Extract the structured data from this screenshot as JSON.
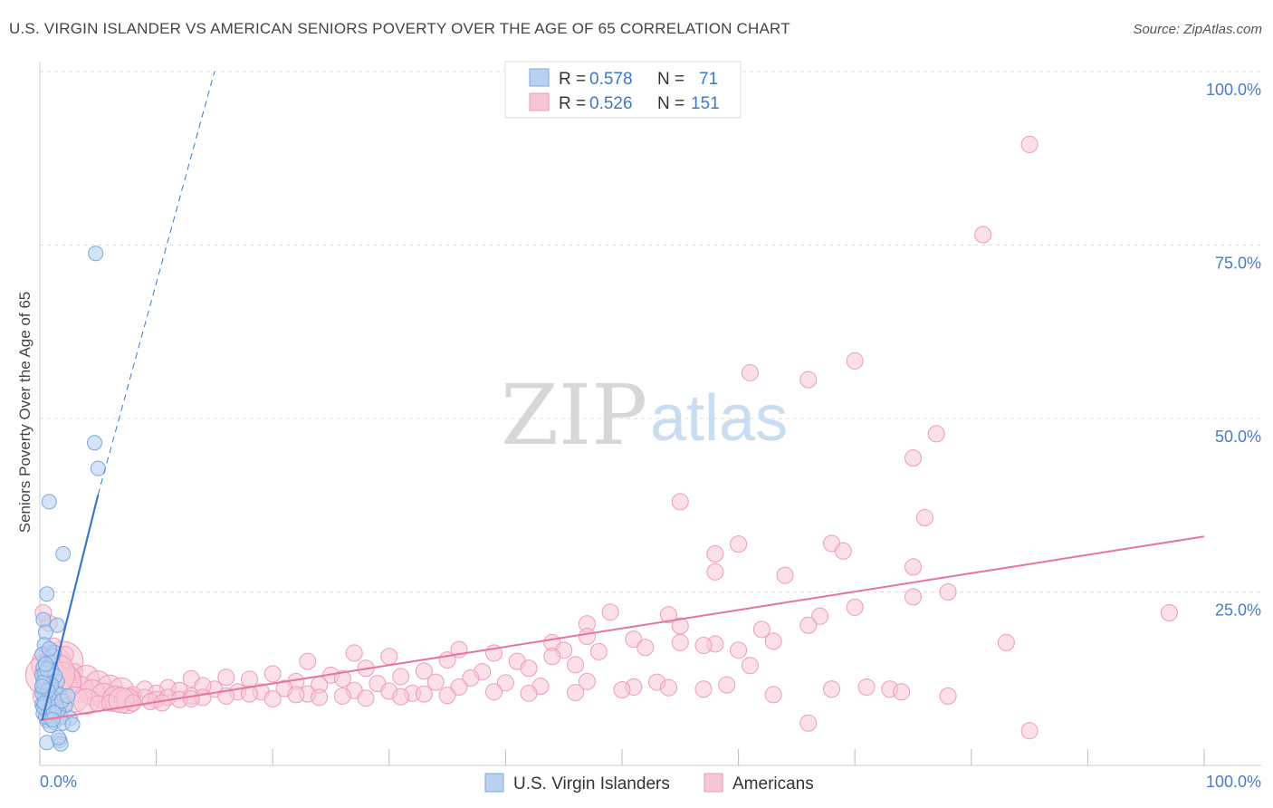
{
  "title": "U.S. VIRGIN ISLANDER VS AMERICAN SENIORS POVERTY OVER THE AGE OF 65 CORRELATION CHART",
  "source": "Source: ZipAtlas.com",
  "watermark": {
    "zip": "ZIP",
    "atlas": "atlas"
  },
  "colors": {
    "blue": "#3b78c9",
    "blue_fill": "#b9d1f0",
    "pink": "#e8739f",
    "pink_fill": "#f7c6d6",
    "grid": "#dddddd",
    "axis_text": "#4a7cc7"
  },
  "chart_data": {
    "type": "scatter",
    "xlabel": "",
    "ylabel": "Seniors Poverty Over the Age of 65",
    "xlim": [
      0,
      100
    ],
    "ylim": [
      0,
      100
    ],
    "x_tick_labels": [
      "0.0%",
      "100.0%"
    ],
    "y_tick_labels": [
      {
        "value": 25,
        "label": "25.0%"
      },
      {
        "value": 50,
        "label": "50.0%"
      },
      {
        "value": 75,
        "label": "75.0%"
      },
      {
        "value": 100,
        "label": "100.0%"
      }
    ],
    "legend": [
      {
        "name": "U.S. Virgin Islanders",
        "R_label": "R =",
        "R": "0.578",
        "N_label": "N =",
        "N": "71",
        "color": "#3b78c9"
      },
      {
        "name": "Americans",
        "R_label": "R =",
        "R": "0.526",
        "N_label": "N =",
        "N": "151",
        "color": "#e8739f"
      }
    ],
    "series": [
      {
        "name": "U.S. Virgin Islanders",
        "trend_solid": [
          [
            0.2,
            6.5
          ],
          [
            5.0,
            39.0
          ]
        ],
        "trend_dashed": [
          [
            5.0,
            39.0
          ],
          [
            15.0,
            100.0
          ]
        ],
        "points": [
          [
            4.8,
            73.8
          ],
          [
            4.7,
            46.5
          ],
          [
            5.0,
            42.8
          ],
          [
            0.8,
            38.0
          ],
          [
            2.0,
            30.5
          ],
          [
            0.6,
            24.7
          ],
          [
            0.3,
            21.0
          ],
          [
            1.5,
            20.2
          ],
          [
            0.5,
            19.2
          ],
          [
            0.4,
            17.4
          ],
          [
            1.2,
            16.3
          ],
          [
            0.6,
            15.3
          ],
          [
            0.9,
            14.9
          ],
          [
            0.3,
            14.2
          ],
          [
            1.0,
            13.7
          ],
          [
            0.2,
            13.0
          ],
          [
            0.7,
            12.6
          ],
          [
            1.5,
            12.1
          ],
          [
            0.4,
            11.8
          ],
          [
            0.9,
            11.3
          ],
          [
            0.3,
            10.9
          ],
          [
            0.6,
            10.6
          ],
          [
            1.3,
            10.5
          ],
          [
            0.8,
            10.1
          ],
          [
            1.1,
            9.8
          ],
          [
            0.5,
            9.4
          ],
          [
            1.4,
            9.1
          ],
          [
            0.2,
            8.8
          ],
          [
            2.2,
            8.6
          ],
          [
            0.7,
            8.2
          ],
          [
            1.6,
            7.8
          ],
          [
            0.3,
            7.5
          ],
          [
            1.0,
            7.2
          ],
          [
            1.8,
            6.9
          ],
          [
            2.6,
            6.8
          ],
          [
            0.6,
            6.5
          ],
          [
            1.2,
            6.2
          ],
          [
            2.0,
            6.1
          ],
          [
            2.8,
            5.9
          ],
          [
            0.9,
            5.8
          ],
          [
            0.4,
            9.9
          ],
          [
            0.5,
            12.3
          ],
          [
            0.7,
            14.0
          ],
          [
            0.2,
            16.0
          ],
          [
            1.1,
            15.8
          ],
          [
            0.6,
            11.0
          ],
          [
            0.8,
            8.0
          ],
          [
            1.7,
            10.2
          ],
          [
            0.4,
            13.3
          ],
          [
            1.3,
            12.9
          ],
          [
            0.2,
            10.4
          ],
          [
            0.5,
            7.0
          ],
          [
            0.9,
            9.5
          ],
          [
            1.0,
            11.6
          ],
          [
            0.3,
            12.0
          ],
          [
            0.6,
            13.8
          ],
          [
            1.4,
            8.5
          ],
          [
            0.7,
            10.8
          ],
          [
            0.2,
            11.4
          ],
          [
            1.9,
            9.3
          ],
          [
            0.5,
            14.6
          ],
          [
            0.8,
            16.8
          ],
          [
            0.3,
            8.4
          ],
          [
            1.2,
            7.6
          ],
          [
            2.4,
            10.0
          ],
          [
            0.6,
            3.3
          ],
          [
            1.7,
            3.6
          ],
          [
            1.8,
            3.1
          ],
          [
            1.6,
            4.0
          ],
          [
            0.4,
            9.0
          ],
          [
            1.1,
            6.6
          ]
        ]
      },
      {
        "name": "Americans",
        "trend": [
          [
            0,
            6.5
          ],
          [
            100,
            33.0
          ]
        ],
        "points": [
          [
            85,
            89.5
          ],
          [
            81,
            76.5
          ],
          [
            70,
            58.3
          ],
          [
            61,
            56.6
          ],
          [
            66,
            55.6
          ],
          [
            77,
            47.8
          ],
          [
            75,
            44.3
          ],
          [
            55,
            38.0
          ],
          [
            76,
            35.7
          ],
          [
            68,
            32.0
          ],
          [
            60,
            31.9
          ],
          [
            58,
            30.5
          ],
          [
            69,
            30.9
          ],
          [
            75,
            28.6
          ],
          [
            58,
            27.9
          ],
          [
            64,
            27.4
          ],
          [
            78,
            25.0
          ],
          [
            75,
            24.3
          ],
          [
            97,
            22.0
          ],
          [
            49,
            22.1
          ],
          [
            70,
            22.8
          ],
          [
            54,
            21.7
          ],
          [
            67,
            21.5
          ],
          [
            66,
            20.2
          ],
          [
            47,
            20.4
          ],
          [
            55,
            20.1
          ],
          [
            62,
            19.6
          ],
          [
            47,
            18.6
          ],
          [
            51,
            18.2
          ],
          [
            58,
            17.5
          ],
          [
            63,
            17.9
          ],
          [
            55,
            17.7
          ],
          [
            57,
            17.3
          ],
          [
            44,
            17.7
          ],
          [
            52,
            17.0
          ],
          [
            48,
            16.4
          ],
          [
            83,
            17.7
          ],
          [
            45,
            16.6
          ],
          [
            60,
            16.6
          ],
          [
            36,
            16.7
          ],
          [
            39,
            16.2
          ],
          [
            44,
            15.7
          ],
          [
            27,
            16.2
          ],
          [
            35,
            15.2
          ],
          [
            30,
            15.7
          ],
          [
            23,
            15.0
          ],
          [
            41,
            15.0
          ],
          [
            61,
            14.4
          ],
          [
            46,
            14.5
          ],
          [
            33,
            13.6
          ],
          [
            28,
            14.0
          ],
          [
            38,
            13.5
          ],
          [
            42,
            14.0
          ],
          [
            25,
            13.0
          ],
          [
            20,
            13.2
          ],
          [
            13,
            12.5
          ],
          [
            16,
            12.7
          ],
          [
            31,
            12.8
          ],
          [
            22,
            12.1
          ],
          [
            26,
            12.5
          ],
          [
            34,
            12.0
          ],
          [
            37,
            12.6
          ],
          [
            18,
            12.4
          ],
          [
            29,
            11.8
          ],
          [
            24,
            11.6
          ],
          [
            36,
            11.3
          ],
          [
            40,
            11.9
          ],
          [
            43,
            11.4
          ],
          [
            47,
            12.1
          ],
          [
            53,
            12.0
          ],
          [
            51,
            11.3
          ],
          [
            59,
            11.6
          ],
          [
            15,
            11.0
          ],
          [
            21,
            11.1
          ],
          [
            14,
            11.5
          ],
          [
            11,
            11.2
          ],
          [
            17,
            10.6
          ],
          [
            19,
            10.6
          ],
          [
            23,
            10.3
          ],
          [
            27,
            10.8
          ],
          [
            30,
            10.7
          ],
          [
            32,
            10.4
          ],
          [
            35,
            10.1
          ],
          [
            39,
            10.6
          ],
          [
            42,
            10.4
          ],
          [
            46,
            10.5
          ],
          [
            50,
            10.9
          ],
          [
            54,
            11.2
          ],
          [
            57,
            11.0
          ],
          [
            71,
            11.3
          ],
          [
            73,
            11.0
          ],
          [
            68,
            11.0
          ],
          [
            74,
            10.6
          ],
          [
            78,
            10.0
          ],
          [
            63,
            10.2
          ],
          [
            66,
            6.1
          ],
          [
            85,
            5.0
          ],
          [
            9,
            11.0
          ],
          [
            10,
            10.4
          ],
          [
            12,
            10.8
          ],
          [
            13,
            10.0
          ],
          [
            14,
            9.8
          ],
          [
            16,
            10.0
          ],
          [
            18,
            10.3
          ],
          [
            20,
            9.6
          ],
          [
            22,
            10.2
          ],
          [
            24,
            9.8
          ],
          [
            26,
            10.0
          ],
          [
            28,
            9.7
          ],
          [
            31,
            9.9
          ],
          [
            33,
            10.3
          ],
          [
            2,
            15.0
          ],
          [
            1,
            14.5
          ],
          [
            3,
            13.5
          ],
          [
            0.5,
            13.0
          ],
          [
            4,
            12.6
          ],
          [
            5,
            11.8
          ],
          [
            6,
            11.2
          ],
          [
            7,
            10.8
          ],
          [
            8,
            10.2
          ],
          [
            9,
            9.8
          ],
          [
            10,
            9.5
          ],
          [
            11,
            9.8
          ],
          [
            12,
            9.5
          ],
          [
            13,
            9.6
          ],
          [
            2.5,
            12.3
          ],
          [
            3.5,
            11.0
          ],
          [
            4.5,
            10.5
          ],
          [
            5.5,
            10.0
          ],
          [
            6.5,
            9.6
          ],
          [
            7.5,
            9.3
          ],
          [
            1.5,
            11.5
          ],
          [
            0.8,
            20.5
          ],
          [
            0.3,
            22.0
          ],
          [
            1.2,
            17.2
          ],
          [
            2.2,
            16.0
          ],
          [
            1.8,
            12.0
          ],
          [
            3.0,
            9.5
          ],
          [
            4.0,
            9.2
          ],
          [
            5.0,
            8.9
          ],
          [
            6.0,
            9.0
          ],
          [
            7.0,
            9.4
          ],
          [
            8.0,
            9.0
          ],
          [
            9.5,
            9.2
          ],
          [
            10.5,
            9.0
          ],
          [
            0.5,
            10.0
          ],
          [
            1.0,
            9.0
          ],
          [
            2.0,
            8.5
          ],
          [
            1.3,
            13.2
          ]
        ]
      }
    ]
  },
  "bottom_legend": [
    {
      "label": "U.S. Virgin Islanders"
    },
    {
      "label": "Americans"
    }
  ]
}
